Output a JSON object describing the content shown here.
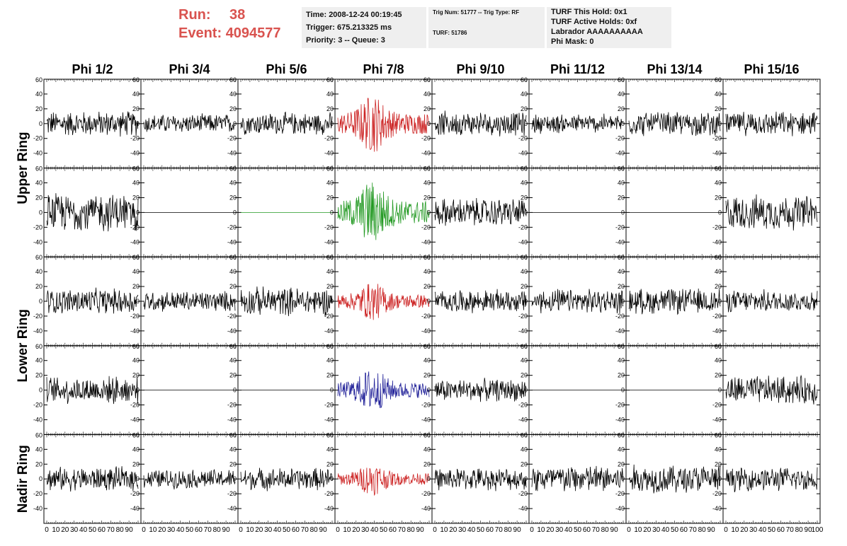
{
  "header": {
    "run_label": "Run:",
    "run_value": "38",
    "event_label": "Event:",
    "event_value": "4094577",
    "time": "Time: 2008-12-24 00:19:45",
    "trigger": "Trigger: 675.213325 ms",
    "priority": "Priority: 3 -- Queue: 3",
    "trig_num": "Trig Num: 51777 -- Trig Type: RF",
    "turf": "TURF: 51786",
    "turf_this_hold": "TURF This Hold: 0x1",
    "turf_active_holds": "TURF Active Holds: 0xf",
    "labrador": "Labrador AAAAAAAAAA",
    "phi_mask": "Phi Mask: 0"
  },
  "colors": {
    "trace": "#000000",
    "highlight_red": "#cc2222",
    "highlight_green": "#229922",
    "highlight_blue": "#222299",
    "header_accent": "#d9534f",
    "box_bg": "#efefef"
  },
  "chart_data": {
    "type": "line",
    "columns": [
      "Phi 1/2",
      "Phi 3/4",
      "Phi 5/6",
      "Phi 7/8",
      "Phi 9/10",
      "Phi 11/12",
      "Phi 13/14",
      "Phi 15/16"
    ],
    "ring_labels": [
      "Upper Ring",
      "Lower Ring",
      "Nadir Ring"
    ],
    "xlim": [
      0,
      100
    ],
    "ylim": [
      -60,
      60
    ],
    "y_ticks": [
      -40,
      -20,
      0,
      20,
      40,
      60
    ],
    "x_ticks": [
      0,
      10,
      20,
      30,
      40,
      50,
      60,
      70,
      80,
      90,
      100
    ],
    "panels": [
      [
        {
          "style": "noise",
          "amp": 16,
          "color": "trace"
        },
        {
          "style": "noise",
          "amp": 12,
          "color": "trace"
        },
        {
          "style": "noise",
          "amp": 14,
          "color": "trace"
        },
        {
          "style": "pulse",
          "amp": 40,
          "color": "highlight_red"
        },
        {
          "style": "noise",
          "amp": 15,
          "color": "trace"
        },
        {
          "style": "noise",
          "amp": 12,
          "color": "trace"
        },
        {
          "style": "noise",
          "amp": 15,
          "color": "trace"
        },
        {
          "style": "noise",
          "amp": 15,
          "color": "trace"
        }
      ],
      [
        {
          "style": "noise",
          "amp": 24,
          "color": "trace"
        },
        {
          "style": "flat",
          "amp": 0,
          "color": "trace"
        },
        {
          "style": "flat",
          "amp": 0,
          "color": "highlight_green"
        },
        {
          "style": "pulse",
          "amp": 44,
          "color": "highlight_green"
        },
        {
          "style": "noise",
          "amp": 18,
          "color": "trace"
        },
        {
          "style": "flat",
          "amp": 0,
          "color": "trace"
        },
        {
          "style": "flat",
          "amp": 0,
          "color": "trace"
        },
        {
          "style": "noise",
          "amp": 22,
          "color": "trace"
        }
      ],
      [
        {
          "style": "noise",
          "amp": 16,
          "color": "trace"
        },
        {
          "style": "noise",
          "amp": 13,
          "color": "trace"
        },
        {
          "style": "noise",
          "amp": 18,
          "color": "trace"
        },
        {
          "style": "pulse",
          "amp": 26,
          "color": "highlight_red"
        },
        {
          "style": "noise",
          "amp": 14,
          "color": "trace"
        },
        {
          "style": "noise",
          "amp": 15,
          "color": "trace"
        },
        {
          "style": "noise",
          "amp": 16,
          "color": "trace"
        },
        {
          "style": "noise",
          "amp": 14,
          "color": "trace"
        }
      ],
      [
        {
          "style": "noise",
          "amp": 17,
          "color": "trace"
        },
        {
          "style": "flat",
          "amp": 0,
          "color": "trace"
        },
        {
          "style": "flat",
          "amp": 0,
          "color": "trace"
        },
        {
          "style": "pulse",
          "amp": 30,
          "color": "highlight_blue"
        },
        {
          "style": "noise",
          "amp": 14,
          "color": "trace"
        },
        {
          "style": "flat",
          "amp": 0,
          "color": "trace"
        },
        {
          "style": "flat",
          "amp": 0,
          "color": "trace"
        },
        {
          "style": "noise",
          "amp": 18,
          "color": "trace"
        }
      ],
      [
        {
          "style": "noise",
          "amp": 15,
          "color": "trace"
        },
        {
          "style": "noise",
          "amp": 12,
          "color": "trace"
        },
        {
          "style": "noise",
          "amp": 14,
          "color": "trace"
        },
        {
          "style": "pulse",
          "amp": 22,
          "color": "highlight_red"
        },
        {
          "style": "noise",
          "amp": 14,
          "color": "trace"
        },
        {
          "style": "noise",
          "amp": 18,
          "color": "trace"
        },
        {
          "style": "noise",
          "amp": 18,
          "color": "trace"
        },
        {
          "style": "noise",
          "amp": 15,
          "color": "trace"
        }
      ]
    ]
  }
}
